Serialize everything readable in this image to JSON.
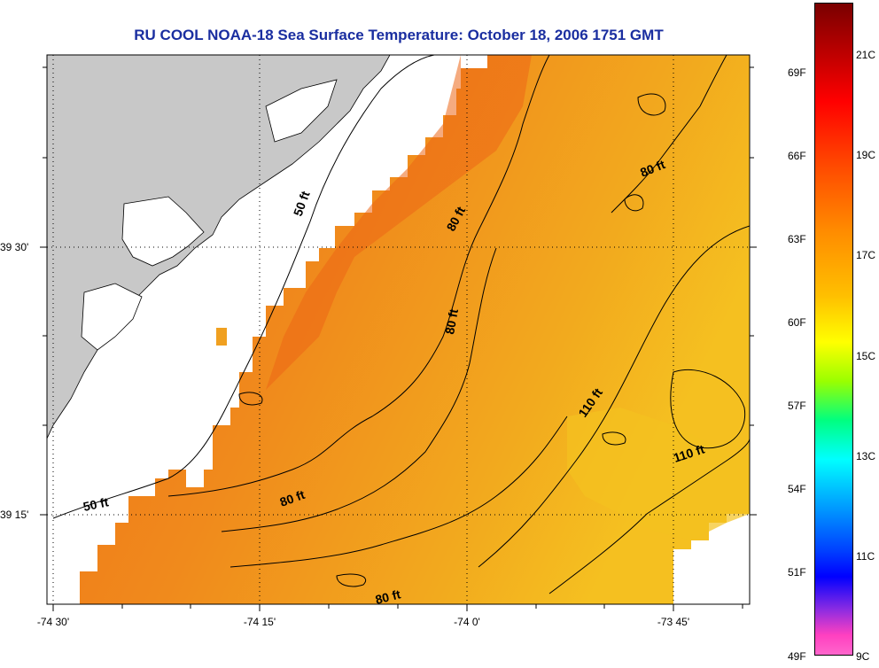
{
  "title": "RU COOL  NOAA-18  Sea Surface Temperature:  October 18, 2006 1751 GMT",
  "axes": {
    "lon_ticks": [
      "-74 30'",
      "-74 15'",
      "-74 0'",
      "-73 45'"
    ],
    "lat_ticks": [
      "39 30'",
      "39 15'"
    ]
  },
  "contour_labels": [
    "50 ft",
    "50 ft",
    "80 ft",
    "80 ft",
    "80 ft",
    "80 ft",
    "80 ft",
    "110 ft",
    "110 ft"
  ],
  "colorbar": {
    "fahrenheit": [
      "69F",
      "66F",
      "63F",
      "60F",
      "57F",
      "54F",
      "51F",
      "49F"
    ],
    "celsius": [
      "21C",
      "19C",
      "17C",
      "15C",
      "13C",
      "11C",
      "9C"
    ]
  },
  "colors": {
    "land": "#c8c8c8",
    "no_data": "#ffffff",
    "sst_warm": "#f07a1a",
    "sst_mid": "#f2a020",
    "sst_cool": "#f4bc22",
    "title": "#1a2ea0"
  }
}
